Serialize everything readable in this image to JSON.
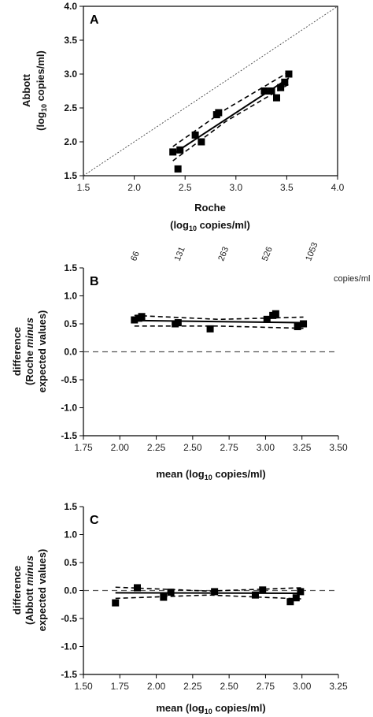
{
  "chart_data": [
    {
      "type": "scatter",
      "panel": "A",
      "xlim": [
        1.5,
        4.0
      ],
      "ylim": [
        1.5,
        4.0
      ],
      "xticks": [
        "1.5",
        "2.0",
        "2.5",
        "3.0",
        "3.5",
        "4.0"
      ],
      "yticks": [
        "1.5",
        "2.0",
        "2.5",
        "3.0",
        "3.5",
        "4.0"
      ],
      "xlabel_line1": "Roche",
      "xlabel_line2_pre": "(log",
      "xlabel_line2_sub": "10",
      "xlabel_line2_post": " copies/ml)",
      "ylabel_line1": "Abbott",
      "ylabel_line2_pre": "(log",
      "ylabel_line2_sub": "10",
      "ylabel_line2_post": " copies/ml)",
      "points": [
        {
          "x": 2.38,
          "y": 1.85
        },
        {
          "x": 2.43,
          "y": 1.6
        },
        {
          "x": 2.45,
          "y": 1.88
        },
        {
          "x": 2.6,
          "y": 2.1
        },
        {
          "x": 2.66,
          "y": 2.0
        },
        {
          "x": 2.81,
          "y": 2.4
        },
        {
          "x": 2.83,
          "y": 2.43
        },
        {
          "x": 3.28,
          "y": 2.75
        },
        {
          "x": 3.35,
          "y": 2.75
        },
        {
          "x": 3.4,
          "y": 2.65
        },
        {
          "x": 3.44,
          "y": 2.8
        },
        {
          "x": 3.48,
          "y": 2.88
        },
        {
          "x": 3.52,
          "y": 3.0
        }
      ],
      "regression": {
        "x": [
          2.38,
          3.52
        ],
        "y": [
          1.82,
          2.94
        ]
      },
      "ci_upper": {
        "x": [
          2.38,
          2.9,
          3.52
        ],
        "y": [
          1.93,
          2.48,
          3.03
        ]
      },
      "ci_lower": {
        "x": [
          2.38,
          2.9,
          3.52
        ],
        "y": [
          1.72,
          2.3,
          2.85
        ]
      },
      "identity": {
        "x": [
          1.5,
          4.0
        ],
        "y": [
          1.5,
          4.0
        ]
      }
    },
    {
      "type": "scatter",
      "panel": "B",
      "xlim": [
        1.75,
        3.5
      ],
      "ylim": [
        -1.5,
        1.5
      ],
      "xticks": [
        "1.75",
        "2.00",
        "2.25",
        "2.50",
        "2.75",
        "3.00",
        "3.25",
        "3.50"
      ],
      "yticks": [
        "-1.5",
        "-1.0",
        "-0.5",
        "0.0",
        "0.5",
        "1.0",
        "1.5"
      ],
      "xlabel_pre": "mean (log",
      "xlabel_sub": "10",
      "xlabel_post": " copies/ml)",
      "ylabel_line1": "difference",
      "ylabel_line2_pre": "(Roche ",
      "ylabel_line2_italic": "minus",
      "ylabel_line3": "expected values)",
      "concentrations": [
        {
          "label": "66",
          "x": 2.12
        },
        {
          "label": "131",
          "x": 2.42
        },
        {
          "label": "263",
          "x": 2.72
        },
        {
          "label": "526",
          "x": 3.02
        },
        {
          "label": "1053",
          "x": 3.32
        }
      ],
      "concentration_unit": "copies/ml",
      "points": [
        {
          "x": 2.1,
          "y": 0.57
        },
        {
          "x": 2.13,
          "y": 0.6
        },
        {
          "x": 2.15,
          "y": 0.63
        },
        {
          "x": 2.38,
          "y": 0.5
        },
        {
          "x": 2.4,
          "y": 0.52
        },
        {
          "x": 2.62,
          "y": 0.41
        },
        {
          "x": 3.01,
          "y": 0.58
        },
        {
          "x": 3.05,
          "y": 0.65
        },
        {
          "x": 3.07,
          "y": 0.68
        },
        {
          "x": 3.22,
          "y": 0.45
        },
        {
          "x": 3.26,
          "y": 0.5
        }
      ],
      "regression": {
        "x": [
          2.1,
          3.26
        ],
        "y": [
          0.56,
          0.52
        ]
      },
      "ci_upper": {
        "x": [
          2.1,
          2.68,
          3.26
        ],
        "y": [
          0.65,
          0.58,
          0.62
        ]
      },
      "ci_lower": {
        "x": [
          2.1,
          2.68,
          3.26
        ],
        "y": [
          0.46,
          0.46,
          0.42
        ]
      },
      "zero_line": 0
    },
    {
      "type": "scatter",
      "panel": "C",
      "xlim": [
        1.5,
        3.25
      ],
      "ylim": [
        -1.5,
        1.5
      ],
      "xticks": [
        "1.50",
        "1.75",
        "2.00",
        "2.25",
        "2.50",
        "2.75",
        "3.00",
        "3.25"
      ],
      "yticks": [
        "-1.5",
        "-1.0",
        "-0.5",
        "0.0",
        "0.5",
        "1.0",
        "1.5"
      ],
      "xlabel_pre": "mean (log",
      "xlabel_sub": "10",
      "xlabel_post": " copies/ml)",
      "ylabel_line1": "difference",
      "ylabel_line2_pre": "(Abbott ",
      "ylabel_line2_italic": "minus",
      "ylabel_line3": "expected values)",
      "points": [
        {
          "x": 1.72,
          "y": -0.22
        },
        {
          "x": 1.87,
          "y": 0.05
        },
        {
          "x": 2.05,
          "y": -0.12
        },
        {
          "x": 2.1,
          "y": -0.03
        },
        {
          "x": 2.4,
          "y": -0.02
        },
        {
          "x": 2.68,
          "y": -0.08
        },
        {
          "x": 2.73,
          "y": 0.01
        },
        {
          "x": 2.92,
          "y": -0.2
        },
        {
          "x": 2.96,
          "y": -0.13
        },
        {
          "x": 2.99,
          "y": -0.02
        }
      ],
      "regression": {
        "x": [
          1.72,
          3.0
        ],
        "y": [
          -0.04,
          -0.05
        ]
      },
      "ci_upper": {
        "x": [
          1.72,
          2.36,
          3.0
        ],
        "y": [
          0.06,
          -0.01,
          0.05
        ]
      },
      "ci_lower": {
        "x": [
          1.72,
          2.36,
          3.0
        ],
        "y": [
          -0.14,
          -0.08,
          -0.15
        ]
      },
      "zero_line": 0
    }
  ]
}
